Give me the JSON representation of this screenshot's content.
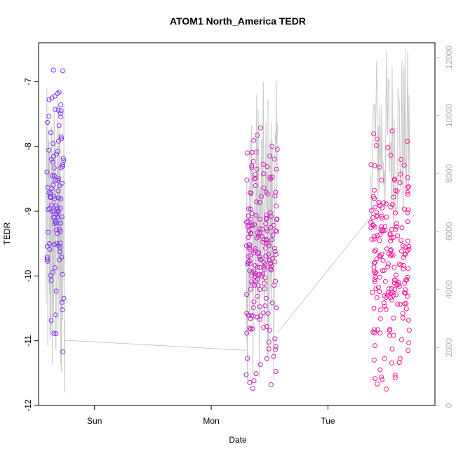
{
  "chart_data": {
    "type": "scatter",
    "title": "ATOM1 North_America TEDR",
    "xlabel": "Date",
    "ylabel": "TEDR",
    "ylim": [
      -12,
      -6.4
    ],
    "y2lim": [
      0,
      12500
    ],
    "x_axis_ticks": [
      {
        "label": "Sun",
        "value": 24
      },
      {
        "label": "Mon",
        "value": 48
      },
      {
        "label": "Tue",
        "value": 72
      }
    ],
    "xlim": [
      12.5,
      94
    ],
    "y_ticks": [
      {
        "label": "-7",
        "value": -7
      },
      {
        "label": "-8",
        "value": -8
      },
      {
        "label": "-9",
        "value": -9
      },
      {
        "label": "-10",
        "value": -10
      },
      {
        "label": "-11",
        "value": -11
      },
      {
        "label": "-12",
        "value": -12
      }
    ],
    "y2_ticks": [
      {
        "label": "0",
        "value": 0
      },
      {
        "label": "2000",
        "value": 2000
      },
      {
        "label": "4000",
        "value": 4000
      },
      {
        "label": "6000",
        "value": 6000
      },
      {
        "label": "8000",
        "value": 8000
      },
      {
        "label": "10000",
        "value": 10000
      },
      {
        "label": "12000",
        "value": 12000
      }
    ],
    "grid": false,
    "legend": "none",
    "colors": {
      "points_start": "#7b2cff",
      "points_end": "#ff1493",
      "line": "#c8c8c8",
      "axis": "#000000",
      "right_axis": "#b0b0b0"
    },
    "series": [
      {
        "marker": "circle",
        "clusters": [
          {
            "x_start": 14.2,
            "x_end": 17.7,
            "count": 105,
            "y_min": -11.3,
            "y_max": -6.45
          },
          {
            "x_start": 55.2,
            "x_end": 61.6,
            "count": 190,
            "y_min": -11.75,
            "y_max": -7.6
          },
          {
            "x_start": 80.8,
            "x_end": 88.8,
            "count": 200,
            "y_min": -11.95,
            "y_max": -7.7
          }
        ]
      },
      {
        "axis": "right",
        "line_segments": [
          {
            "x_start": 14.0,
            "x_end": 17.9,
            "y_min": 200,
            "y_max": 11000
          },
          {
            "x_start": 55.2,
            "x_end": 61.6,
            "y_min": 800,
            "y_max": 11200
          },
          {
            "x_start": 80.8,
            "x_end": 88.8,
            "y_min": 6000,
            "y_max": 12400
          }
        ],
        "bridges": [
          {
            "x0": 17.9,
            "y0": 2250,
            "x1": 55.2,
            "y1": 1900
          },
          {
            "x0": 61.6,
            "y0": 2500,
            "x1": 80.8,
            "y1": 6500
          }
        ]
      }
    ]
  }
}
